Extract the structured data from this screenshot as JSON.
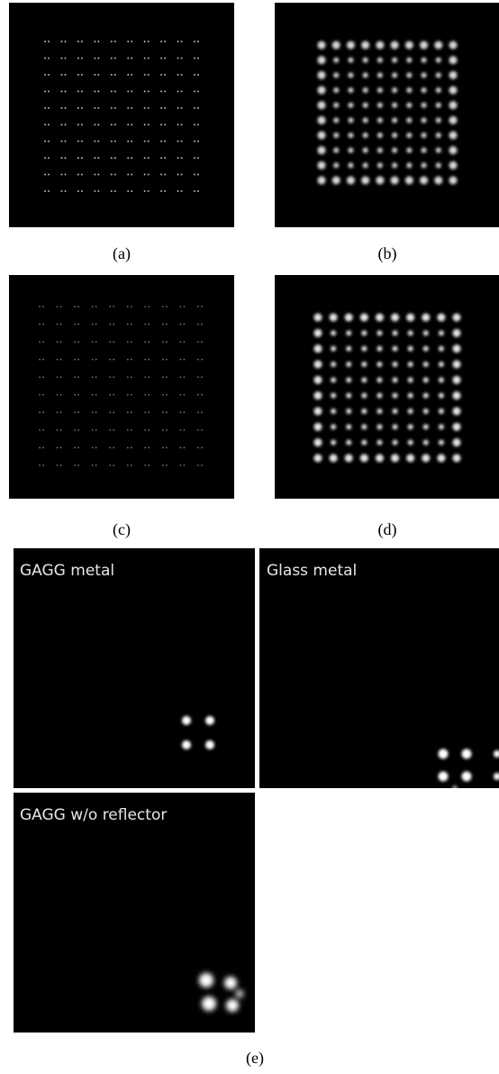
{
  "panels": {
    "a": {
      "caption": "(a)"
    },
    "b": {
      "caption": "(b)"
    },
    "c": {
      "caption": "(c)"
    },
    "d": {
      "caption": "(d)"
    }
  },
  "figure_e": {
    "caption": "(e)",
    "tiles": [
      {
        "label": "GAGG metal"
      },
      {
        "label": "Glass metal"
      },
      {
        "label": "GAGG w/o reflector"
      }
    ]
  }
}
